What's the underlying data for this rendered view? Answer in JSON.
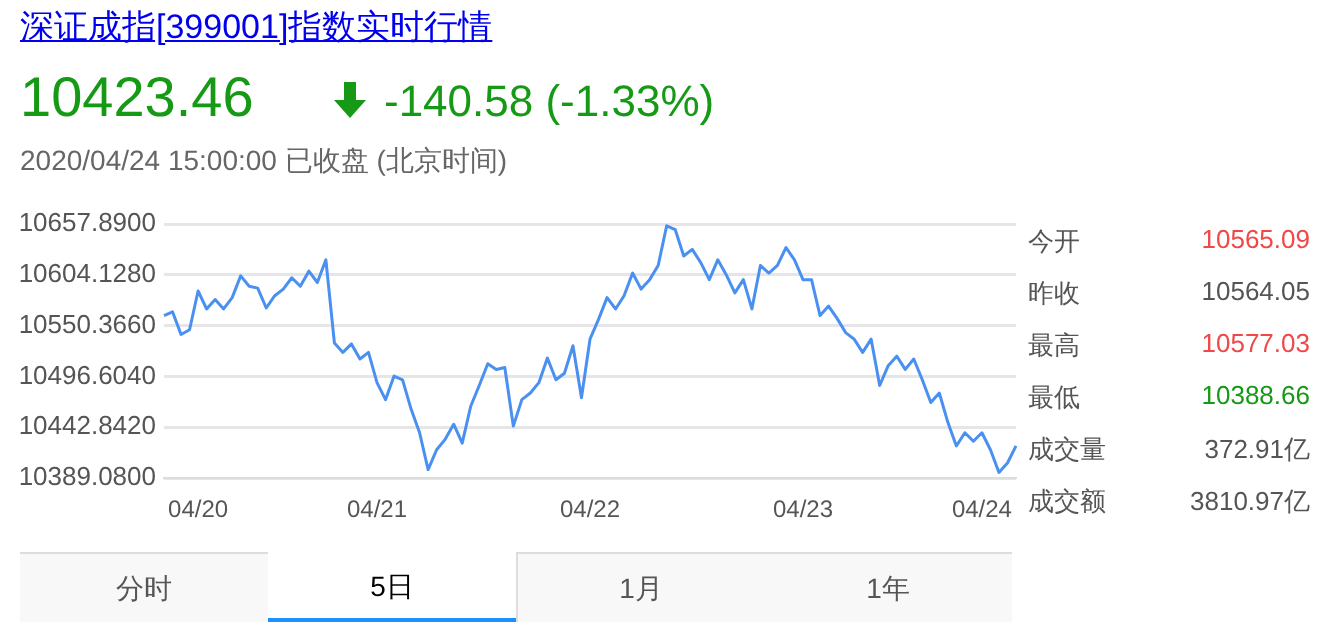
{
  "chart_data": {
    "type": "line",
    "title": "深证成指[399001]指数实时行情",
    "subtitle": "10423.46",
    "annotations": [
      "-140.58 (-1.33%)",
      "2020/04/24 15:00:00  已收盘  (北京时间)",
      "今开",
      "10565.09",
      "昨收",
      "10564.05",
      "最高",
      "10577.03",
      "最低",
      "10388.66",
      "成交量",
      "372.91亿",
      "成交额",
      "3810.97亿",
      "分时",
      "5日",
      "1月",
      "1年"
    ],
    "categories": [
      null,
      null,
      null,
      null,
      "04/20",
      null,
      null,
      null,
      null,
      null,
      null,
      null,
      null,
      null,
      null,
      null,
      null,
      null,
      null,
      null,
      null,
      null,
      null,
      null,
      null,
      "04/21",
      null,
      null,
      null,
      null,
      null,
      null,
      null,
      null,
      null,
      null,
      null,
      null,
      null,
      null,
      null,
      null,
      null,
      null,
      null,
      null,
      null,
      null,
      null,
      null,
      "04/22",
      null,
      null,
      null,
      null,
      null,
      null,
      null,
      null,
      null,
      null,
      null,
      null,
      null,
      null,
      null,
      null,
      null,
      null,
      null,
      null,
      null,
      null,
      null,
      null,
      "04/23",
      null,
      null,
      null,
      null,
      null,
      null,
      null,
      null,
      null,
      null,
      null,
      null,
      null,
      null,
      null,
      null,
      null,
      null,
      null,
      null,
      "04/24",
      null,
      null,
      null,
      null
    ],
    "series": [
      {
        "color": "#4a90f0",
        "values": [
          10561,
          10565,
          10541,
          10546,
          10587,
          10568,
          10578,
          10568,
          10580,
          10603,
          10592,
          10590,
          10569,
          10582,
          10589,
          10601,
          10592,
          10608,
          10596,
          10620,
          10532,
          10522,
          10531,
          10515,
          10522,
          10490,
          10472,
          10497,
          10493,
          10462,
          10437,
          10398,
          10419,
          10430,
          10446,
          10426,
          10465,
          10487,
          10510,
          10504,
          10506,
          10444,
          10472,
          10479,
          10490,
          10516,
          10493,
          10500,
          10529,
          10474,
          10536,
          10557,
          10580,
          10568,
          10582,
          10606,
          10589,
          10599,
          10614,
          10656,
          10652,
          10624,
          10631,
          10617,
          10599,
          10620,
          10604,
          10585,
          10599,
          10568,
          10614,
          10606,
          10614,
          10633,
          10620,
          10599,
          10599,
          10561,
          10571,
          10558,
          10543,
          10536,
          10522,
          10536,
          10487,
          10508,
          10518,
          10504,
          10515,
          10493,
          10469,
          10479,
          10448,
          10423,
          10437,
          10428,
          10437,
          10419,
          10395,
          10405,
          10423
        ]
      }
    ],
    "ylim": [
      10389.08,
      10657.89
    ],
    "yticks": [
      {
        "value": 10389.08,
        "label": "10389.0800"
      },
      {
        "value": 10442.842,
        "label": "10442.8420"
      },
      {
        "value": 10496.604,
        "label": "10496.6040"
      },
      {
        "value": 10550.366,
        "label": "10550.3660"
      },
      {
        "value": 10604.128,
        "label": "10604.1280"
      },
      {
        "value": 10657.89,
        "label": "10657.8900"
      }
    ],
    "grid": "y",
    "legend": false,
    "marker": "none",
    "line_style": "solid"
  }
}
